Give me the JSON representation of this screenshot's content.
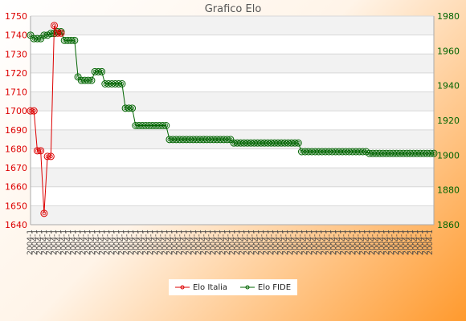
{
  "chart_data": {
    "type": "line",
    "title": "Grafico Elo",
    "xlabel": "",
    "ylabel": "",
    "y_left": {
      "min": 1640,
      "max": 1750,
      "ticks": [
        1640,
        1650,
        1660,
        1670,
        1680,
        1690,
        1700,
        1710,
        1720,
        1730,
        1740,
        1750
      ],
      "color": "#dd0000"
    },
    "y_right": {
      "min": 1860,
      "max": 1980,
      "ticks": [
        1860,
        1880,
        1900,
        1920,
        1940,
        1960,
        1980
      ],
      "color": "#006400"
    },
    "x_tick_text": "2004-1",
    "grid": true,
    "legend_position": "bottom",
    "series": [
      {
        "name": "Elo Italia",
        "axis": "left",
        "color": "#dd0000",
        "values": [
          1700,
          1700,
          1679,
          1679,
          1646,
          1676,
          1676,
          1745,
          1741,
          1741
        ]
      },
      {
        "name": "Elo FIDE",
        "axis": "right",
        "color": "#006400",
        "values": [
          1969,
          1967,
          1967,
          1967,
          1969,
          1969,
          1970,
          1970,
          1971,
          1971,
          1966,
          1966,
          1966,
          1966,
          1945,
          1943,
          1943,
          1943,
          1943,
          1948,
          1948,
          1948,
          1941,
          1941,
          1941,
          1941,
          1941,
          1941,
          1927,
          1927,
          1927,
          1917,
          1917,
          1917,
          1917,
          1917,
          1917,
          1917,
          1917,
          1917,
          1917,
          1909,
          1909,
          1909,
          1909,
          1909,
          1909,
          1909,
          1909,
          1909,
          1909,
          1909,
          1909,
          1909,
          1909,
          1909,
          1909,
          1909,
          1909,
          1909,
          1907,
          1907,
          1907,
          1907,
          1907,
          1907,
          1907,
          1907,
          1907,
          1907,
          1907,
          1907,
          1907,
          1907,
          1907,
          1907,
          1907,
          1907,
          1907,
          1907,
          1902,
          1902,
          1902,
          1902,
          1902,
          1902,
          1902,
          1902,
          1902,
          1902,
          1902,
          1902,
          1902,
          1902,
          1902,
          1902,
          1902,
          1902,
          1902,
          1902,
          1901,
          1901,
          1901,
          1901,
          1901,
          1901,
          1901,
          1901,
          1901,
          1901,
          1901,
          1901,
          1901,
          1901,
          1901,
          1901,
          1901,
          1901,
          1901,
          1901
        ]
      }
    ]
  }
}
